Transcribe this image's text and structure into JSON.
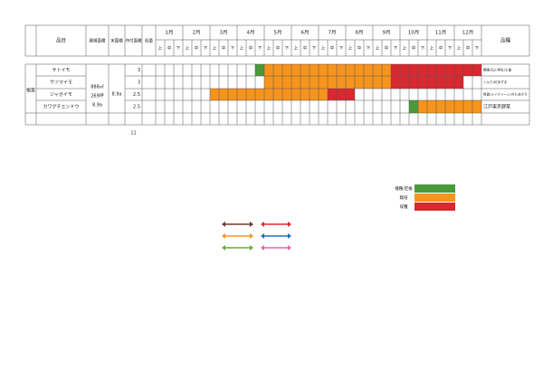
{
  "table": {
    "headers": {
      "item": "品目",
      "field_area": "圃場面積",
      "actual_area": "実面積",
      "planted_area": "作付面積",
      "yield": "収量",
      "variety": "品種"
    },
    "months": [
      "1月",
      "2月",
      "3月",
      "4月",
      "5月",
      "6月",
      "7月",
      "8月",
      "9月",
      "10月",
      "11月",
      "12月"
    ],
    "periods": [
      "上",
      "中",
      "下"
    ],
    "category": "根菜",
    "field_area": [
      "888㎡",
      "269坪",
      "8.9a"
    ],
    "actual_area": "8.9a",
    "rows": [
      {
        "name": "サトイモ",
        "planted_area": 3,
        "variety": "関東/石川早生/土垂",
        "schedule": [
          {
            "legend": 0,
            "from": 11,
            "to": 11
          },
          {
            "legend": 1,
            "from": 12,
            "to": 25
          },
          {
            "legend": 2,
            "from": 26,
            "to": 35
          }
        ]
      },
      {
        "name": "サツマイモ",
        "planted_area": 3,
        "variety": "シルク/紅あずま",
        "schedule": [
          {
            "legend": 1,
            "from": 12,
            "to": 25
          },
          {
            "legend": 2,
            "from": 26,
            "to": 33
          }
        ]
      },
      {
        "name": "ジャガイモ",
        "planted_area": 2.5,
        "variety": "男爵/メイクイーン/きたあかり",
        "schedule": [
          {
            "legend": 1,
            "from": 6,
            "to": 18
          },
          {
            "legend": 2,
            "from": 19,
            "to": 21
          }
        ]
      },
      {
        "name": "カワグチエンドウ",
        "planted_area": 2.5,
        "variety": "江戸東京野菜",
        "schedule": [
          {
            "legend": 0,
            "from": 28,
            "to": 28
          },
          {
            "legend": 1,
            "from": 29,
            "to": 35
          }
        ]
      }
    ],
    "total_planted": 11
  },
  "legend": [
    {
      "label": "播種/定植",
      "color": "#4a9a3a"
    },
    {
      "label": "栽培",
      "color": "#f7941d"
    },
    {
      "label": "収穫",
      "color": "#d9282f"
    }
  ]
}
